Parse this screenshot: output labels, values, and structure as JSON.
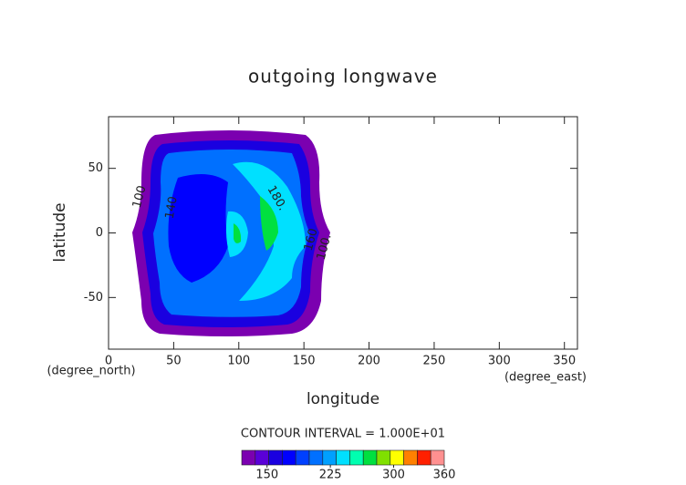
{
  "chart_data": {
    "type": "contour",
    "title": "outgoing longwave",
    "x_label": "longitude",
    "y_label": "latitude",
    "x_unit": "(degree_east)",
    "y_unit": "(degree_north)",
    "xlim": [
      0,
      360
    ],
    "ylim": [
      -90,
      90
    ],
    "xticks": [
      0,
      50,
      100,
      150,
      200,
      250,
      300,
      350
    ],
    "yticks": [
      -50,
      0,
      50
    ],
    "contour_labels": [
      "100",
      "140",
      "180.",
      "160",
      "100."
    ],
    "contour_interval_text": "CONTOUR INTERVAL = 1.000E+01",
    "colorbar": {
      "range": [
        120,
        360
      ],
      "ticks": [
        150,
        225,
        300,
        360
      ],
      "colors": [
        "#7b00b0",
        "#5a00d8",
        "#1a00e0",
        "#0000ff",
        "#0040ff",
        "#0070ff",
        "#00a0ff",
        "#00e0ff",
        "#00ffb0",
        "#00e040",
        "#80e000",
        "#ffff00",
        "#ff8000",
        "#ff2000",
        "#ff9090"
      ]
    }
  }
}
